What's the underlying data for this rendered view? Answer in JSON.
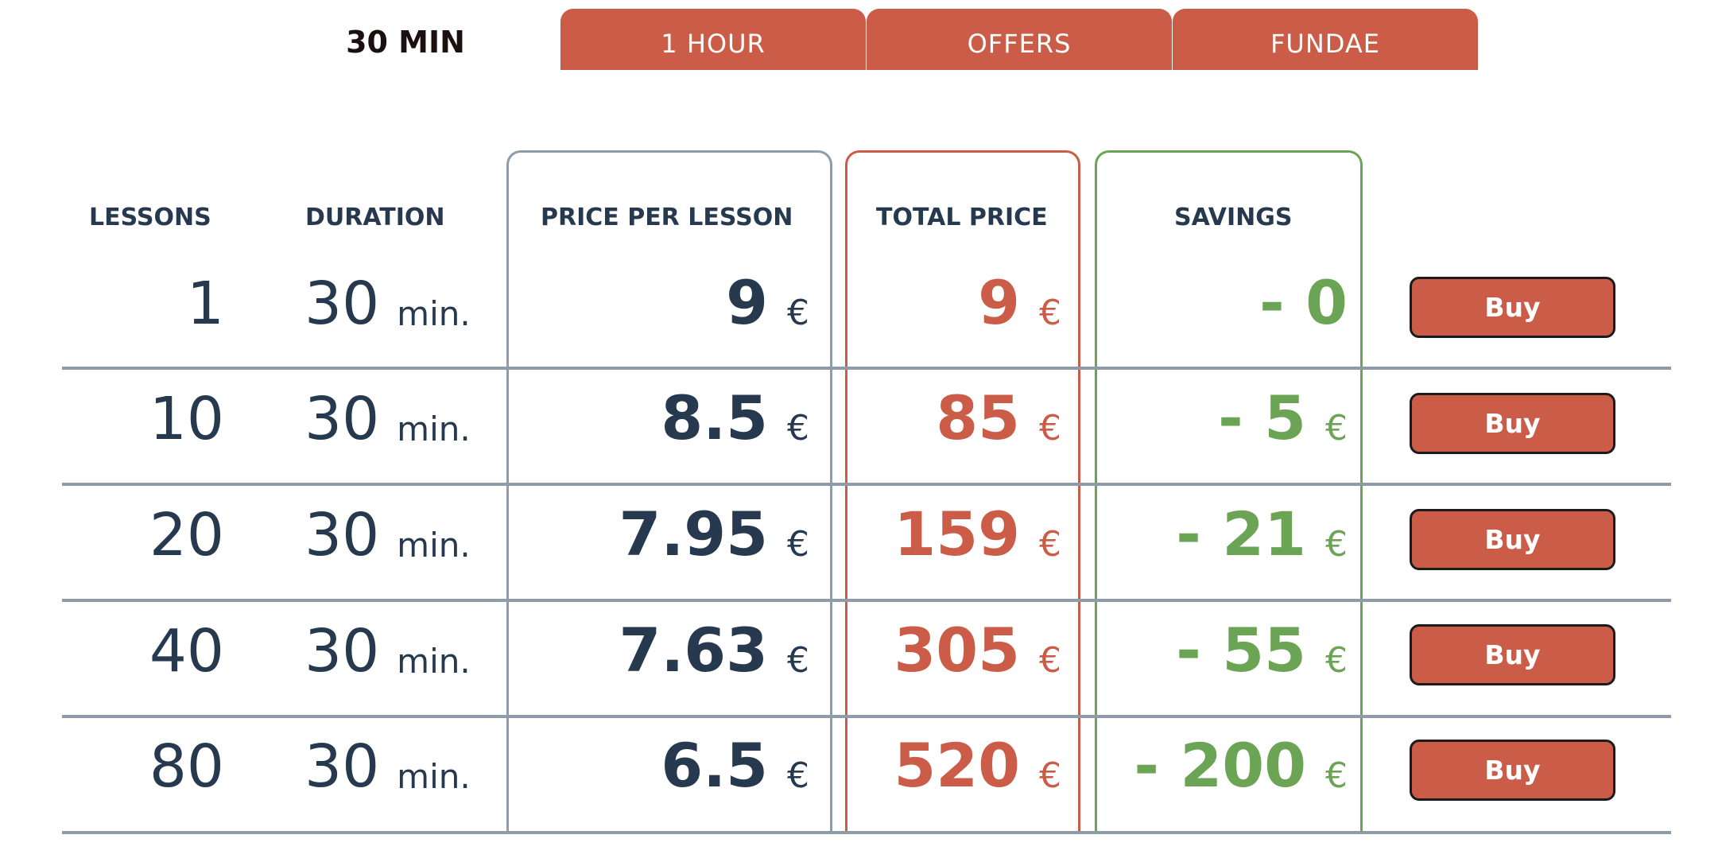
{
  "tabs": {
    "active": "30 MIN",
    "items": [
      "1 HOUR",
      "OFFERS",
      "FUNDAE"
    ]
  },
  "table": {
    "headers": {
      "lessons": "LESSONS",
      "duration": "DURATION",
      "price_per_lesson": "PRICE PER LESSON",
      "total_price": "TOTAL PRICE",
      "savings": "SAVINGS"
    },
    "currency": "€",
    "rows": [
      {
        "lessons": "1",
        "duration": "30",
        "unit": "min.",
        "price": "9",
        "total": "9",
        "savings": "- 0",
        "savings_currency": "",
        "buy": "Buy"
      },
      {
        "lessons": "10",
        "duration": "30",
        "unit": "min.",
        "price": "8.5",
        "total": "85",
        "savings": "- 5",
        "savings_currency": "€",
        "buy": "Buy"
      },
      {
        "lessons": "20",
        "duration": "30",
        "unit": "min.",
        "price": "7.95",
        "total": "159",
        "savings": "- 21",
        "savings_currency": "€",
        "buy": "Buy"
      },
      {
        "lessons": "40",
        "duration": "30",
        "unit": "min.",
        "price": "7.63",
        "total": "305",
        "savings": "- 55",
        "savings_currency": "€",
        "buy": "Buy"
      },
      {
        "lessons": "80",
        "duration": "30",
        "unit": "min.",
        "price": "6.5",
        "total": "520",
        "savings": "- 200",
        "savings_currency": "€",
        "buy": "Buy"
      }
    ]
  },
  "colors": {
    "accent": "#cb5c48",
    "text": "#27394e",
    "savings": "#6ca455",
    "price_border": "#8e9ba8",
    "total_border": "#cb5c48",
    "savings_border": "#6ca455"
  }
}
